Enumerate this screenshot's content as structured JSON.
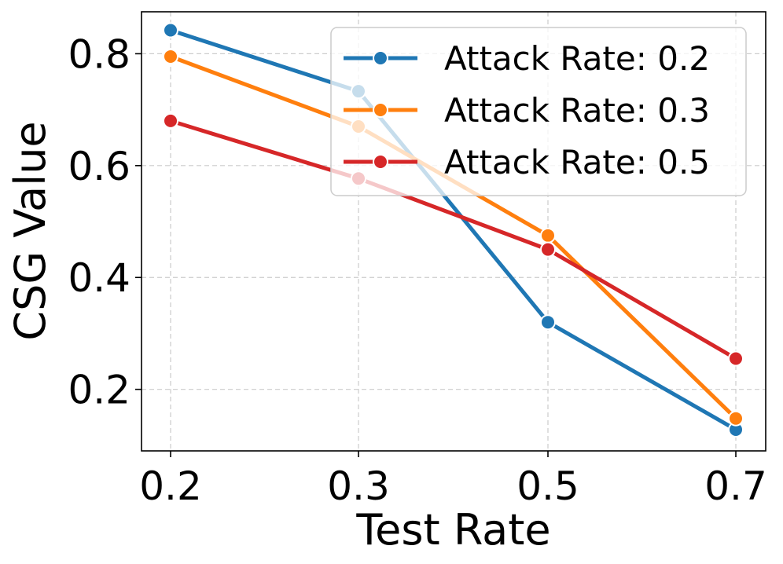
{
  "chart_data": {
    "type": "line",
    "title": "",
    "xlabel": "Test Rate",
    "ylabel": "CSG Value",
    "categories": [
      "0.2",
      "0.3",
      "0.5",
      "0.7"
    ],
    "yticks": [
      "0.2",
      "0.4",
      "0.6",
      "0.8"
    ],
    "ylim": [
      0.09,
      0.875
    ],
    "grid": true,
    "legend_position": "top-right",
    "series": [
      {
        "name": "Attack Rate: 0.2",
        "color": "#1f77b4",
        "values": [
          0.842,
          0.733,
          0.32,
          0.128
        ]
      },
      {
        "name": "Attack Rate: 0.3",
        "color": "#ff7f0e",
        "values": [
          0.795,
          0.67,
          0.475,
          0.148
        ]
      },
      {
        "name": "Attack Rate: 0.5",
        "color": "#d62728",
        "values": [
          0.68,
          0.577,
          0.45,
          0.255
        ]
      }
    ]
  }
}
